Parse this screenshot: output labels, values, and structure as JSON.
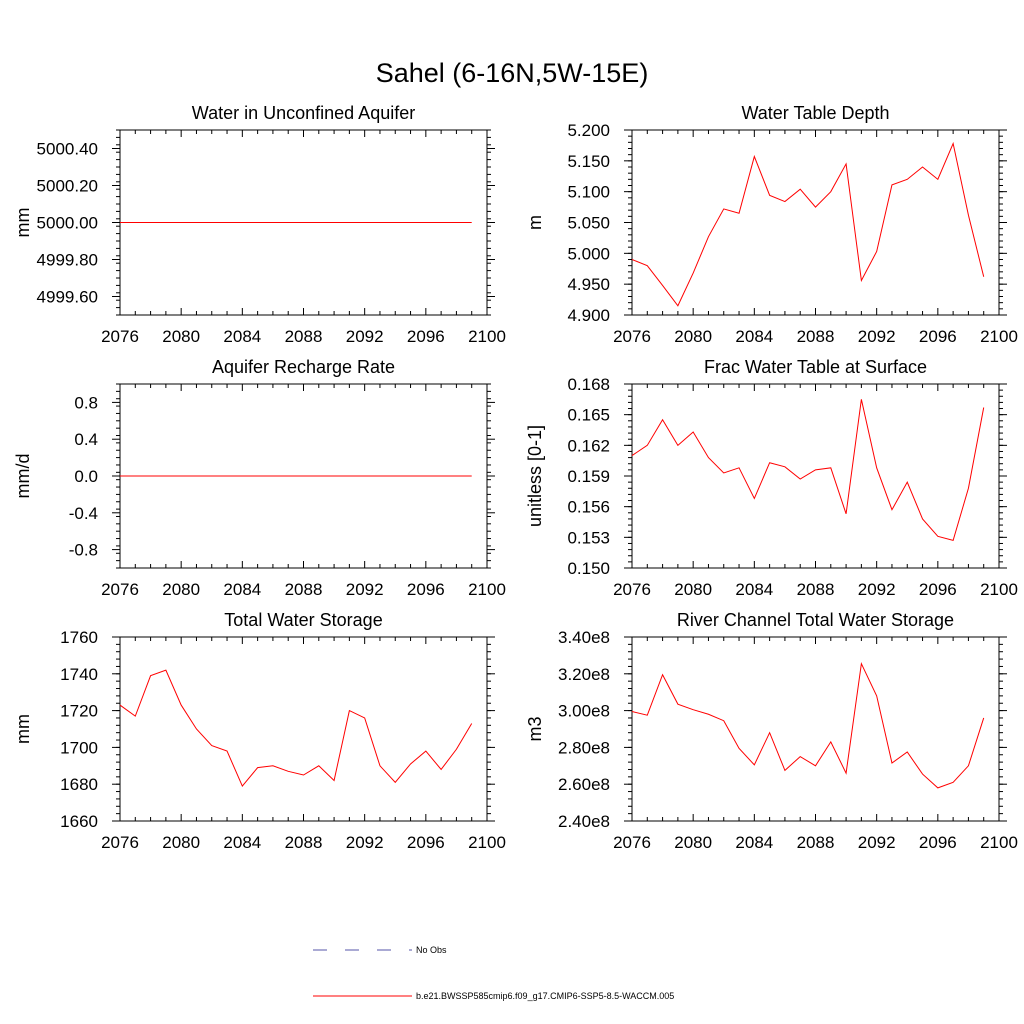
{
  "figure": {
    "title": "Sahel (6-16N,5W-15E)",
    "line_color": "#ff0000",
    "legend": [
      {
        "label": "No Obs",
        "style": "dashed",
        "color": "#5555aa"
      },
      {
        "label": "b.e21.BWSSP585cmip6.f09_g17.CMIP6-SSP5-8.5-WACCM.005",
        "style": "solid",
        "color": "#ff0000"
      }
    ]
  },
  "chart_data": [
    {
      "type": "line",
      "title": "Water in Unconfined Aquifer",
      "ylabel": "mm",
      "xlim": [
        2076,
        2100
      ],
      "ylim": [
        4999.5,
        5000.5
      ],
      "xticks": [
        2076,
        2080,
        2084,
        2088,
        2092,
        2096,
        2100
      ],
      "yticks": [
        4999.6,
        4999.8,
        5000.0,
        5000.2,
        5000.4
      ],
      "ytick_labels": [
        "4999.60",
        "4999.80",
        "5000.00",
        "5000.20",
        "5000.40"
      ],
      "x": [
        2076,
        2099
      ],
      "series": [
        {
          "values": [
            5000.0,
            5000.0
          ]
        }
      ]
    },
    {
      "type": "line",
      "title": "Water Table Depth",
      "ylabel": "m",
      "xlim": [
        2076,
        2100
      ],
      "ylim": [
        4.9,
        5.2
      ],
      "xticks": [
        2076,
        2080,
        2084,
        2088,
        2092,
        2096,
        2100
      ],
      "yticks": [
        4.9,
        4.95,
        5.0,
        5.05,
        5.1,
        5.15,
        5.2
      ],
      "ytick_labels": [
        "4.900",
        "4.950",
        "5.000",
        "5.050",
        "5.100",
        "5.150",
        "5.200"
      ],
      "x": [
        2076,
        2077,
        2078,
        2079,
        2080,
        2081,
        2082,
        2083,
        2084,
        2085,
        2086,
        2087,
        2088,
        2089,
        2090,
        2091,
        2092,
        2093,
        2094,
        2095,
        2096,
        2097,
        2098,
        2099
      ],
      "series": [
        {
          "values": [
            4.99,
            4.98,
            4.948,
            4.915,
            4.968,
            5.027,
            5.072,
            5.065,
            5.157,
            5.094,
            5.084,
            5.104,
            5.075,
            5.1,
            5.145,
            4.956,
            5.003,
            5.111,
            5.12,
            5.14,
            5.12,
            5.178,
            5.062,
            4.962
          ]
        }
      ]
    },
    {
      "type": "line",
      "title": "Aquifer Recharge Rate",
      "ylabel": "mm/d",
      "xlim": [
        2076,
        2100
      ],
      "ylim": [
        -1.0,
        1.0
      ],
      "xticks": [
        2076,
        2080,
        2084,
        2088,
        2092,
        2096,
        2100
      ],
      "yticks": [
        -0.8,
        -0.4,
        0.0,
        0.4,
        0.8
      ],
      "ytick_labels": [
        "-0.8",
        "-0.4",
        "0.0",
        "0.4",
        "0.8"
      ],
      "x": [
        2076,
        2099
      ],
      "series": [
        {
          "values": [
            0.0,
            0.0
          ]
        }
      ]
    },
    {
      "type": "line",
      "title": "Frac Water Table at Surface",
      "ylabel": "unitless [0-1]",
      "xlim": [
        2076,
        2100
      ],
      "ylim": [
        0.15,
        0.168
      ],
      "xticks": [
        2076,
        2080,
        2084,
        2088,
        2092,
        2096,
        2100
      ],
      "yticks": [
        0.15,
        0.153,
        0.156,
        0.159,
        0.162,
        0.165,
        0.168
      ],
      "ytick_labels": [
        "0.150",
        "0.153",
        "0.156",
        "0.159",
        "0.162",
        "0.165",
        "0.168"
      ],
      "x": [
        2076,
        2077,
        2078,
        2079,
        2080,
        2081,
        2082,
        2083,
        2084,
        2085,
        2086,
        2087,
        2088,
        2089,
        2090,
        2091,
        2092,
        2093,
        2094,
        2095,
        2096,
        2097,
        2098,
        2099
      ],
      "series": [
        {
          "values": [
            0.161,
            0.162,
            0.1645,
            0.162,
            0.1633,
            0.1608,
            0.1593,
            0.1598,
            0.1568,
            0.1603,
            0.1599,
            0.1587,
            0.1596,
            0.1598,
            0.1553,
            0.1665,
            0.1598,
            0.1557,
            0.1584,
            0.1548,
            0.1531,
            0.1527,
            0.1578,
            0.1657
          ]
        }
      ]
    },
    {
      "type": "line",
      "title": "Total Water Storage",
      "ylabel": "mm",
      "xlim": [
        2076,
        2100
      ],
      "ylim": [
        1660,
        1760
      ],
      "xticks": [
        2076,
        2080,
        2084,
        2088,
        2092,
        2096,
        2100
      ],
      "yticks": [
        1660,
        1680,
        1700,
        1720,
        1740,
        1760
      ],
      "ytick_labels": [
        "1660",
        "1680",
        "1700",
        "1720",
        "1740",
        "1760"
      ],
      "x": [
        2076,
        2077,
        2078,
        2079,
        2080,
        2081,
        2082,
        2083,
        2084,
        2085,
        2086,
        2087,
        2088,
        2089,
        2090,
        2091,
        2092,
        2093,
        2094,
        2095,
        2096,
        2097,
        2098,
        2099
      ],
      "series": [
        {
          "values": [
            1723,
            1717,
            1739,
            1742,
            1723,
            1710,
            1701,
            1698,
            1679,
            1689,
            1690,
            1687,
            1685,
            1690,
            1682,
            1720,
            1716,
            1690,
            1681,
            1691,
            1698,
            1688,
            1699,
            1713
          ]
        }
      ]
    },
    {
      "type": "line",
      "title": "River Channel Total Water Storage",
      "ylabel": "m3",
      "xlim": [
        2076,
        2100
      ],
      "ylim": [
        240000000,
        340000000
      ],
      "xticks": [
        2076,
        2080,
        2084,
        2088,
        2092,
        2096,
        2100
      ],
      "yticks": [
        240000000,
        260000000,
        280000000,
        300000000,
        320000000,
        340000000
      ],
      "ytick_labels": [
        "2.40e8",
        "2.60e8",
        "2.80e8",
        "3.00e8",
        "3.20e8",
        "3.40e8"
      ],
      "x": [
        2076,
        2077,
        2078,
        2079,
        2080,
        2081,
        2082,
        2083,
        2084,
        2085,
        2086,
        2087,
        2088,
        2089,
        2090,
        2091,
        2092,
        2093,
        2094,
        2095,
        2096,
        2097,
        2098,
        2099
      ],
      "series": [
        {
          "values": [
            299500000,
            297500000,
            319500000,
            303500000,
            300500000,
            298000000,
            294500000,
            279500000,
            270500000,
            288000000,
            267500000,
            275000000,
            270000000,
            283000000,
            266000000,
            325500000,
            308000000,
            271500000,
            277500000,
            265500000,
            258000000,
            261000000,
            270000000,
            296000000
          ]
        }
      ]
    }
  ]
}
